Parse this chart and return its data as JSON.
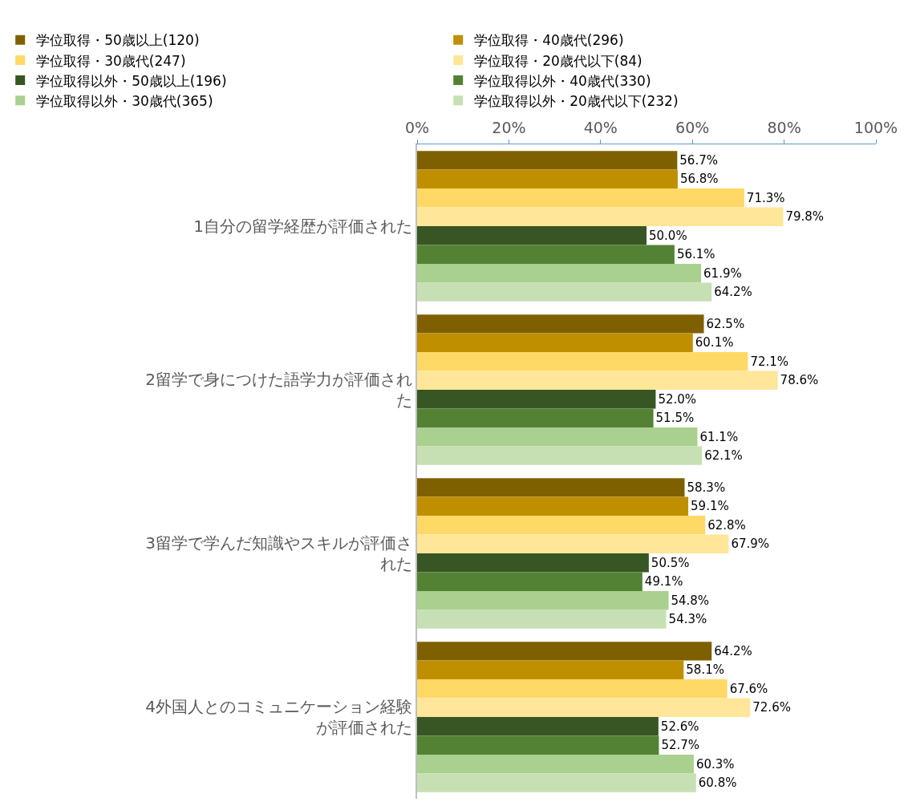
{
  "chart_data": {
    "type": "bar",
    "orientation": "horizontal",
    "categories": [
      "1自分の留学経歴が評価された",
      "2留学で身につけた語学力が評価された",
      "3留学で学んだ知識やスキルが評価された",
      "4外国人とのコミュニケーション経験が評価された"
    ],
    "series": [
      {
        "name": "学位取得・50歳以上(120)",
        "color": "#7f6000",
        "values": [
          56.7,
          62.5,
          58.3,
          64.2
        ],
        "value_labels": [
          "56.7%",
          "62.5%",
          "58.3%",
          "64.2%"
        ]
      },
      {
        "name": "学位取得・40歳代(296)",
        "color": "#bf8f00",
        "values": [
          56.8,
          60.1,
          59.1,
          58.1
        ],
        "value_labels": [
          "56.8%",
          "60.1%",
          "59.1%",
          "58.1%"
        ]
      },
      {
        "name": "学位取得・30歳代(247)",
        "color": "#ffd966",
        "values": [
          71.3,
          72.1,
          62.8,
          67.6
        ],
        "value_labels": [
          "71.3%",
          "72.1%",
          "62.8%",
          "67.6%"
        ]
      },
      {
        "name": "学位取得・20歳代以下(84)",
        "color": "#ffe699",
        "values": [
          79.8,
          78.6,
          67.9,
          72.6
        ],
        "value_labels": [
          "79.8%",
          "78.6%",
          "67.9%",
          "72.6%"
        ]
      },
      {
        "name": "学位取得以外・50歳以上(196)",
        "color": "#375623",
        "values": [
          50.0,
          52.0,
          50.5,
          52.6
        ],
        "value_labels": [
          "50.0%",
          "52.0%",
          "50.5%",
          "52.6%"
        ]
      },
      {
        "name": "学位取得以外・40歳代(330)",
        "color": "#548235",
        "values": [
          56.1,
          51.5,
          49.1,
          52.7
        ],
        "value_labels": [
          "56.1%",
          "51.5%",
          "49.1%",
          "52.7%"
        ]
      },
      {
        "name": "学位取得以外・30歳代(365)",
        "color": "#a9d08e",
        "values": [
          61.9,
          61.1,
          54.8,
          60.3
        ],
        "value_labels": [
          "61.9%",
          "61.1%",
          "54.8%",
          "60.3%"
        ]
      },
      {
        "name": "学位取得以外・20歳代以下(232)",
        "color": "#c6e0b4",
        "values": [
          64.2,
          62.1,
          54.3,
          60.8
        ],
        "value_labels": [
          "64.2%",
          "62.1%",
          "54.3%",
          "60.8%"
        ]
      }
    ],
    "xlim": [
      0,
      100
    ],
    "xticks": [
      {
        "value": 0,
        "label": "0%"
      },
      {
        "value": 20,
        "label": "20%"
      },
      {
        "value": 40,
        "label": "40%"
      },
      {
        "value": 60,
        "label": "60%"
      },
      {
        "value": 80,
        "label": "80%"
      },
      {
        "value": 100,
        "label": "100%"
      }
    ],
    "grid": false,
    "legend": "top"
  }
}
